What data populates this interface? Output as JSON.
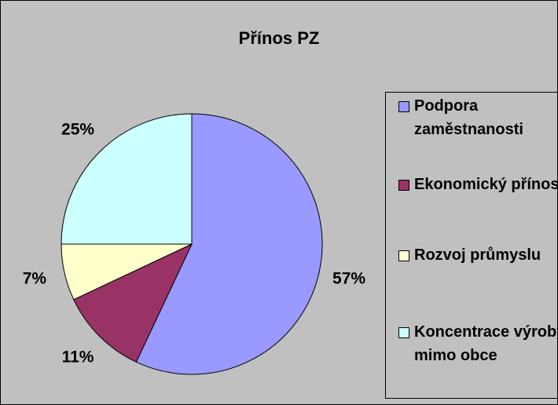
{
  "chart_data": {
    "type": "pie",
    "title": "Přínos PZ",
    "categories": [
      "Podpora zaměstnanosti",
      "Ekonomický přínos",
      "Rozvoj průmyslu",
      "Koncentrace výroby mimo obce"
    ],
    "values": [
      57,
      11,
      7,
      25
    ],
    "value_labels": [
      "57%",
      "11%",
      "7%",
      "25%"
    ],
    "colors": [
      "#9999ff",
      "#993366",
      "#ffffcc",
      "#ccffff"
    ],
    "legend": "right"
  }
}
